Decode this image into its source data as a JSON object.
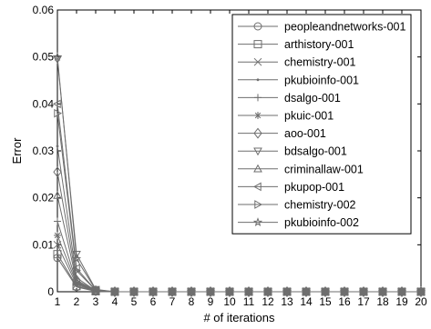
{
  "chart_data": {
    "type": "line",
    "title": "",
    "xlabel": "# of iterations",
    "ylabel": "Error",
    "xlim": [
      1,
      20
    ],
    "ylim": [
      0,
      0.06
    ],
    "x": [
      1,
      2,
      3,
      4,
      5,
      6,
      7,
      8,
      9,
      10,
      11,
      12,
      13,
      14,
      15,
      16,
      17,
      18,
      19,
      20
    ],
    "x_tick_labels": [
      "1",
      "2",
      "3",
      "4",
      "5",
      "6",
      "7",
      "8",
      "9",
      "10",
      "11",
      "12",
      "13",
      "14",
      "15",
      "16",
      "17",
      "18",
      "19",
      "20"
    ],
    "y_ticks": [
      0,
      0.01,
      0.02,
      0.03,
      0.04,
      0.05,
      0.06
    ],
    "y_tick_labels": [
      "0",
      "0.01",
      "0.02",
      "0.03",
      "0.04",
      "0.05",
      "0.06"
    ],
    "grid": false,
    "legend_position": "top-right",
    "line_color": "#6e6e6e",
    "series": [
      {
        "name": "peopleandnetworks-001",
        "marker": "circle",
        "values": [
          0.0072,
          0.001,
          0.0001,
          0,
          0,
          0,
          0,
          0,
          0,
          0,
          0,
          0,
          0,
          0,
          0,
          0,
          0,
          0,
          0,
          0
        ]
      },
      {
        "name": "arthistory-001",
        "marker": "square",
        "values": [
          0.008,
          0.0012,
          0.0001,
          0,
          0,
          0,
          0,
          0,
          0,
          0,
          0,
          0,
          0,
          0,
          0,
          0,
          0,
          0,
          0,
          0
        ]
      },
      {
        "name": "chemistry-001",
        "marker": "x",
        "values": [
          0.01,
          0.0015,
          0.0001,
          0,
          0,
          0,
          0,
          0,
          0,
          0,
          0,
          0,
          0,
          0,
          0,
          0,
          0,
          0,
          0,
          0
        ]
      },
      {
        "name": "pkubioinfo-001",
        "marker": "dot",
        "values": [
          0.031,
          0.003,
          0.0002,
          0,
          0,
          0,
          0,
          0,
          0,
          0,
          0,
          0,
          0,
          0,
          0,
          0,
          0,
          0,
          0,
          0
        ]
      },
      {
        "name": "dsalgo-001",
        "marker": "plus",
        "values": [
          0.015,
          0.002,
          0.0001,
          0,
          0,
          0,
          0,
          0,
          0,
          0,
          0,
          0,
          0,
          0,
          0,
          0,
          0,
          0,
          0,
          0
        ]
      },
      {
        "name": "pkuic-001",
        "marker": "asterisk",
        "values": [
          0.012,
          0.0018,
          0.0001,
          0,
          0,
          0,
          0,
          0,
          0,
          0,
          0,
          0,
          0,
          0,
          0,
          0,
          0,
          0,
          0,
          0
        ]
      },
      {
        "name": "aoo-001",
        "marker": "diamond",
        "values": [
          0.0255,
          0.0025,
          0.0002,
          0,
          0,
          0,
          0,
          0,
          0,
          0,
          0,
          0,
          0,
          0,
          0,
          0,
          0,
          0,
          0,
          0
        ]
      },
      {
        "name": "bdsalgo-001",
        "marker": "triangle-down",
        "values": [
          0.0495,
          0.008,
          0.0005,
          0,
          0,
          0,
          0,
          0,
          0,
          0,
          0,
          0,
          0,
          0,
          0,
          0,
          0,
          0,
          0,
          0
        ]
      },
      {
        "name": "criminallaw-001",
        "marker": "triangle-up",
        "values": [
          0.0205,
          0.0022,
          0.0001,
          0,
          0,
          0,
          0,
          0,
          0,
          0,
          0,
          0,
          0,
          0,
          0,
          0,
          0,
          0,
          0,
          0
        ]
      },
      {
        "name": "pkupop-001",
        "marker": "triangle-left",
        "values": [
          0.04,
          0.005,
          0.0003,
          0,
          0,
          0,
          0,
          0,
          0,
          0,
          0,
          0,
          0,
          0,
          0,
          0,
          0,
          0,
          0,
          0
        ]
      },
      {
        "name": "chemistry-002",
        "marker": "triangle-right",
        "values": [
          0.038,
          0.0045,
          0.0003,
          0,
          0,
          0,
          0,
          0,
          0,
          0,
          0,
          0,
          0,
          0,
          0,
          0,
          0,
          0,
          0,
          0
        ]
      },
      {
        "name": "pkubioinfo-002",
        "marker": "pentagram",
        "values": [
          0.05,
          0.007,
          0.0004,
          0,
          0,
          0,
          0,
          0,
          0,
          0,
          0,
          0,
          0,
          0,
          0,
          0,
          0,
          0,
          0,
          0
        ]
      }
    ]
  }
}
